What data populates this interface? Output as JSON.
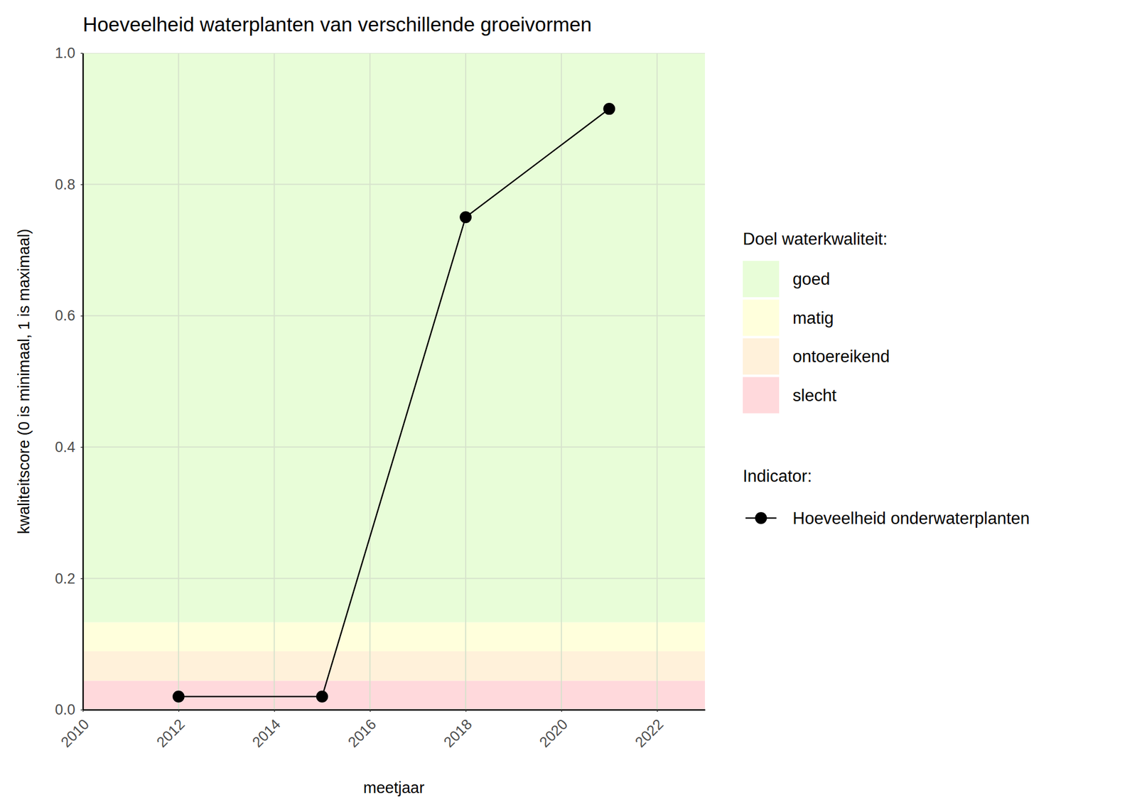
{
  "chart_data": {
    "type": "line",
    "title": "Hoeveelheid waterplanten van verschillende groeivormen",
    "x_label": "meetjaar",
    "y_label": "kwaliteitscore (0 is minimaal, 1 is maximaal)",
    "x": [
      2012,
      2015,
      2018,
      2021
    ],
    "series": [
      {
        "name": "Hoeveelheid onderwaterplanten",
        "color": "#000000",
        "marker": "circle",
        "line_style": "solid",
        "values": [
          0.02,
          0.02,
          0.75,
          0.915
        ]
      }
    ],
    "xlim": [
      2010,
      2023
    ],
    "ylim": [
      0,
      1
    ],
    "xticks": [
      2010,
      2012,
      2014,
      2016,
      2018,
      2020,
      2022
    ],
    "yticks": [
      {
        "value": 0,
        "label": "0.0"
      },
      0.2,
      0.4,
      0.6,
      0.8,
      {
        "value": 1,
        "label": "1.0"
      }
    ],
    "grid": true,
    "legend": "right",
    "legend_title": "Indicator:",
    "bands": {
      "title": "Doel waterkwaliteit:",
      "items": [
        {
          "name": "goed",
          "color": "#e8fdd8",
          "from": 0.133,
          "to": 1
        },
        {
          "name": "matig",
          "color": "#ffffdc",
          "from": 0.089,
          "to": 0.133
        },
        {
          "name": "ontoereikend",
          "color": "#fff1da",
          "from": 0.044,
          "to": 0.089
        },
        {
          "name": "slecht",
          "color": "#ffd9dc",
          "from": 0,
          "to": 0.044
        }
      ]
    }
  }
}
